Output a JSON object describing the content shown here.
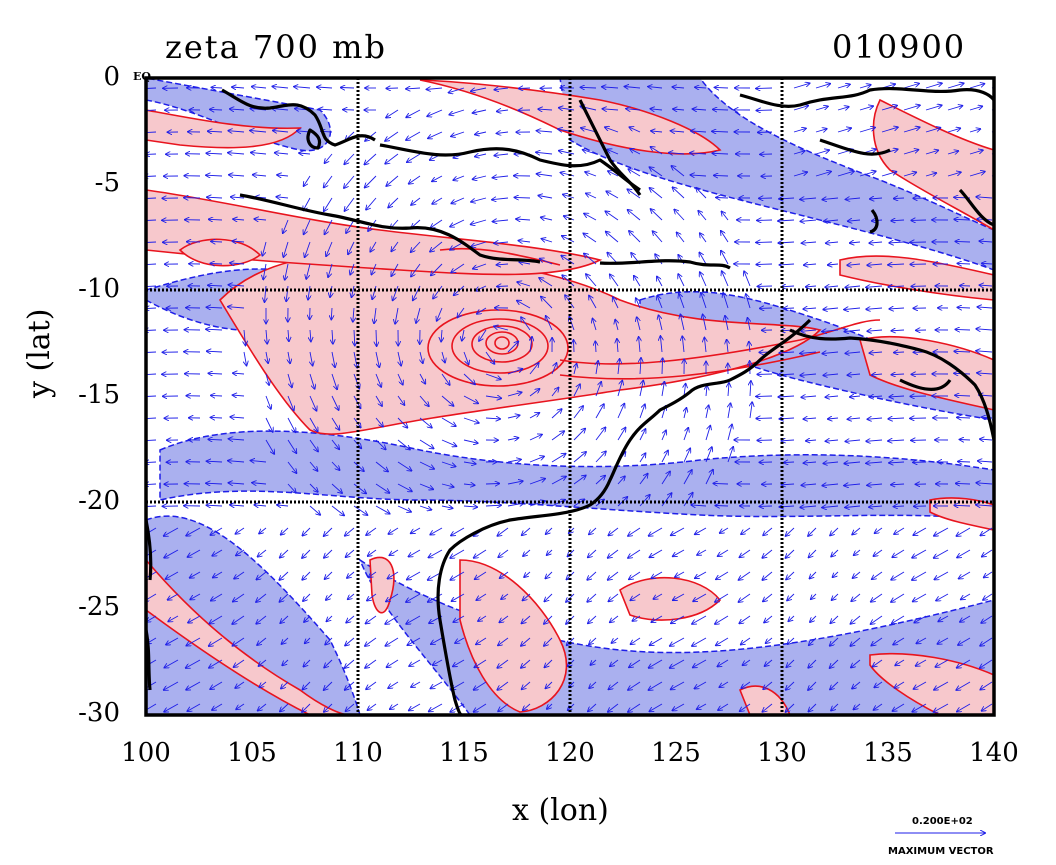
{
  "title": "zeta 700 mb",
  "timestamp": "010900",
  "xlabel": "x (lon)",
  "ylabel": "y (lat)",
  "eq_label": "EQ",
  "x_ticks": [
    "100",
    "105",
    "110",
    "115",
    "120",
    "125",
    "130",
    "135",
    "140"
  ],
  "y_ticks": [
    "0",
    "-5",
    "-10",
    "-15",
    "-20",
    "-25",
    "-30"
  ],
  "vector_key": {
    "value": "0.200E+02",
    "caption": "MAXIMUM VECTOR"
  },
  "colors": {
    "positive_fill": "#f7c8cc",
    "positive_contour": "#e8141e",
    "negative_fill": "#aab0ef",
    "negative_contour": "#1e1ee8",
    "vectors": "#1e1ee8",
    "coastline": "#000000",
    "grid": "#000000"
  },
  "chart_data": {
    "type": "vector-contour map",
    "xlim": [
      100,
      140
    ],
    "ylim": [
      -30,
      0
    ],
    "grid_lon": [
      110,
      120,
      130
    ],
    "grid_lat": [
      -10,
      -20
    ],
    "cyclone_center": {
      "lon": 116.5,
      "lat": -12.5
    }
  }
}
